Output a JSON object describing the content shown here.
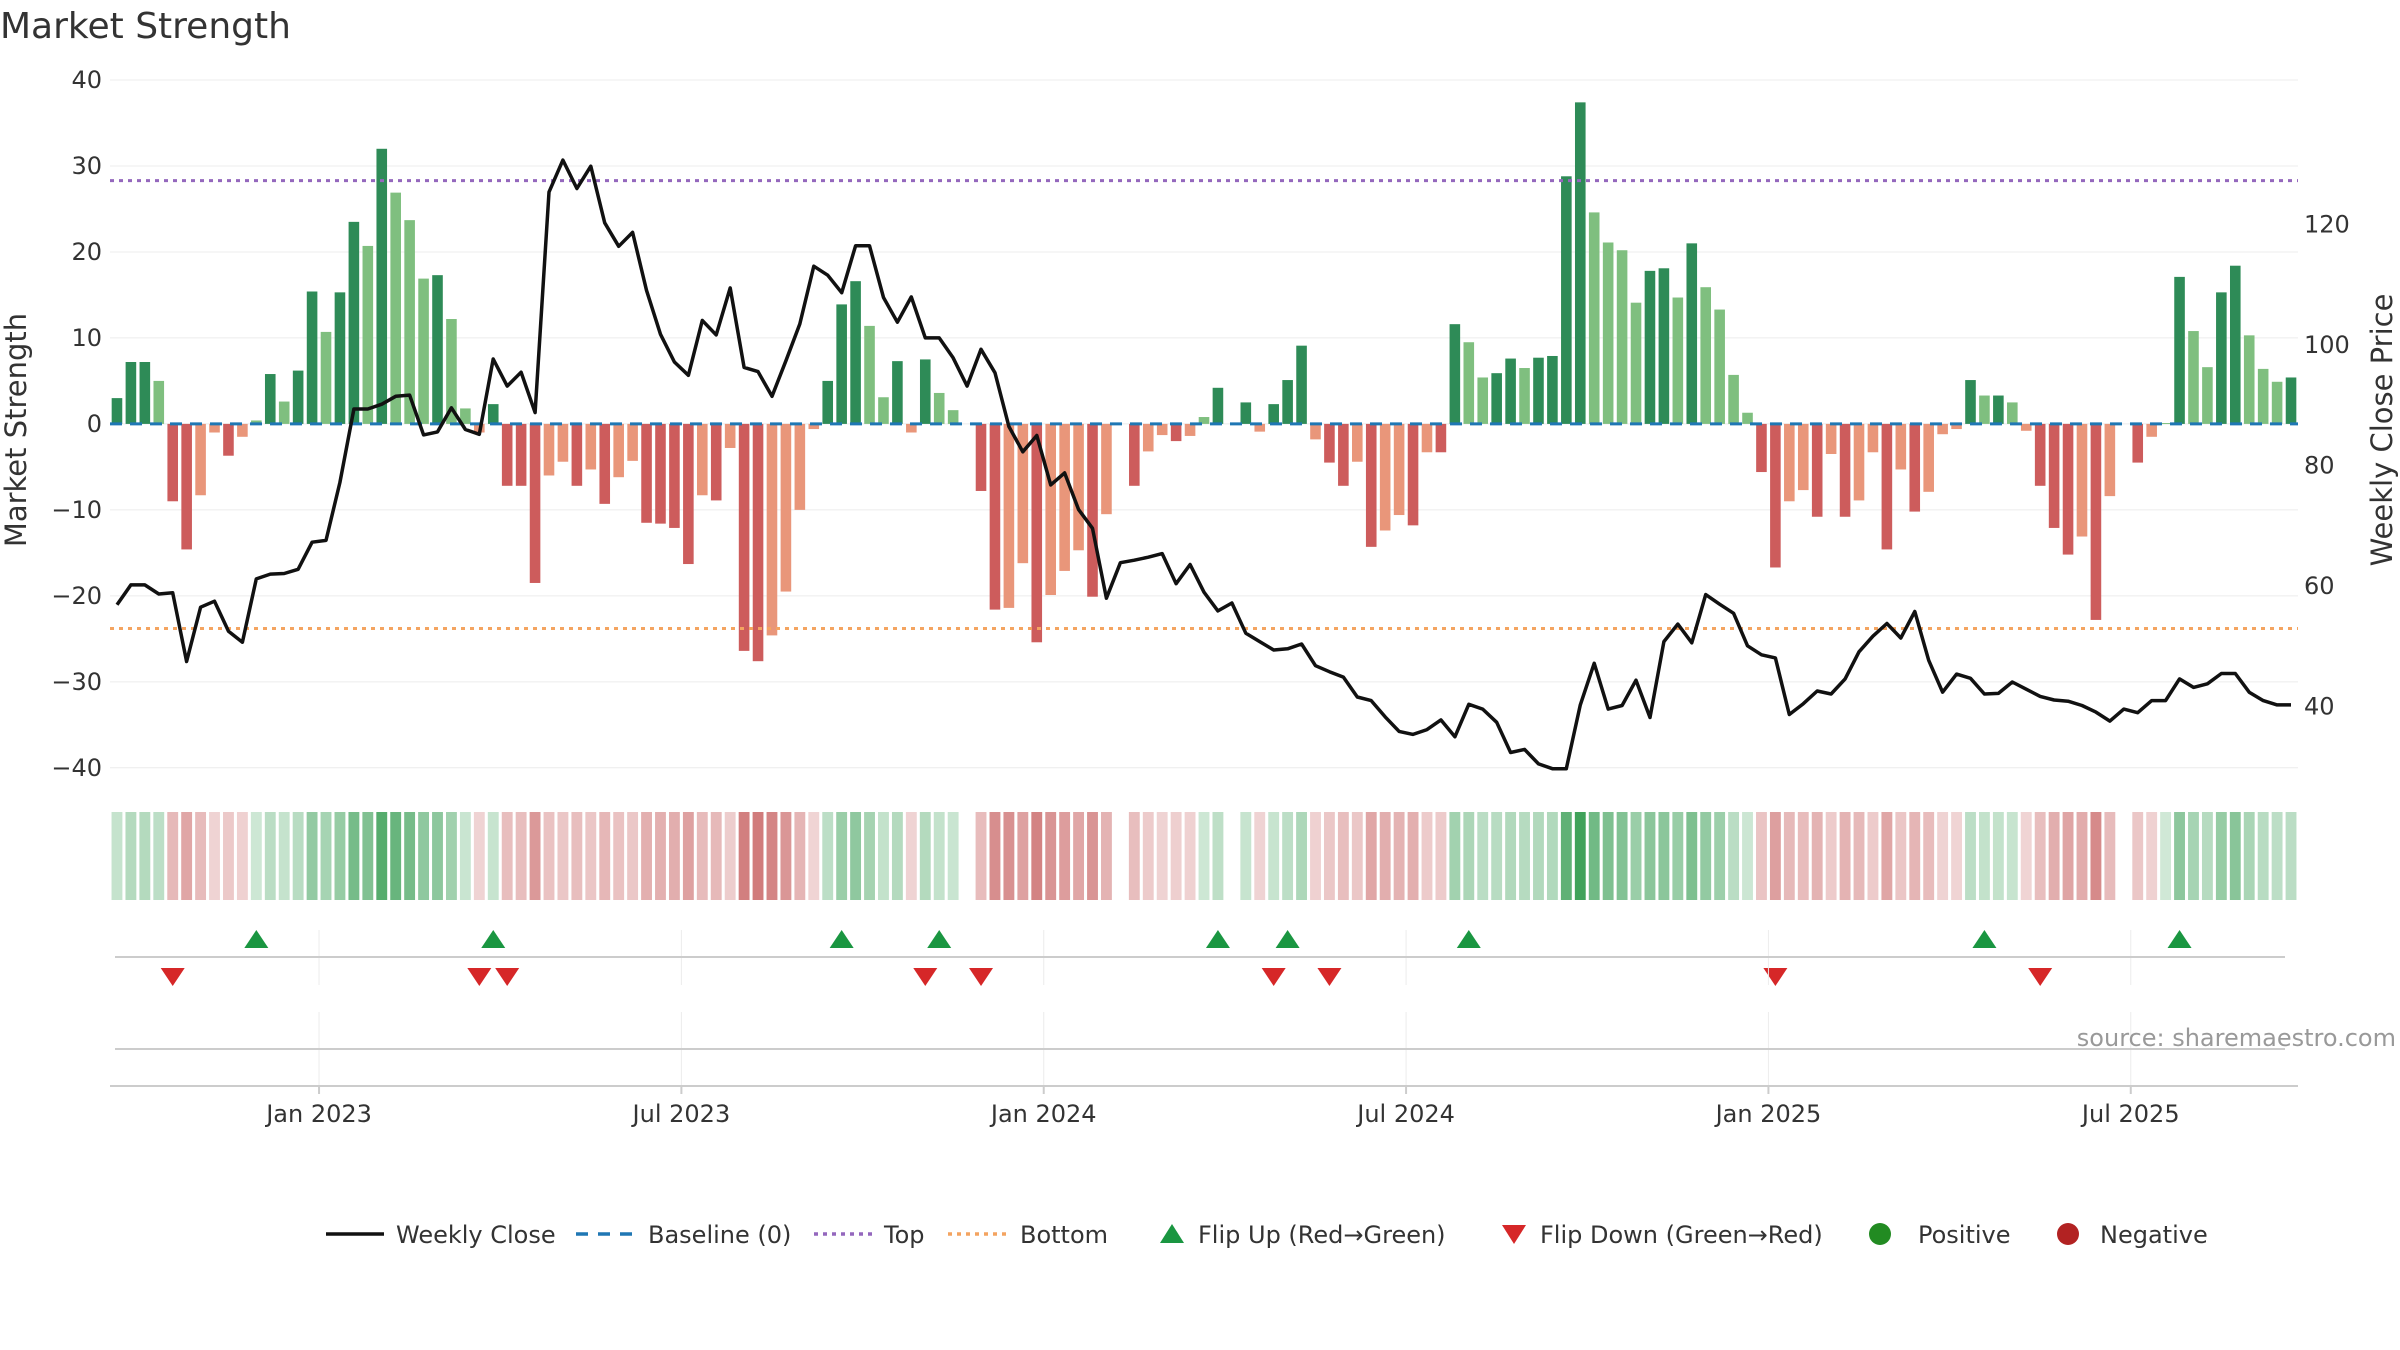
{
  "chart_data": {
    "type": "bar",
    "title": "Market Strength",
    "ylabel": "Market Strength",
    "y2label": "Weekly Close Price",
    "ylim": [
      -42,
      40
    ],
    "y2lim": [
      27,
      144
    ],
    "yticks": [
      40,
      30,
      20,
      10,
      0,
      -10,
      -20,
      -30,
      -40
    ],
    "y2ticks": [
      120,
      100,
      80,
      60,
      40
    ],
    "xticks": [
      "Jan 2023",
      "Jul 2023",
      "Jan 2024",
      "Jul 2024",
      "Jan 2025",
      "Jul 2025"
    ],
    "xtick_week_index": [
      15,
      41,
      67,
      93,
      119,
      145
    ],
    "top_level": 28.3,
    "bottom_level": -23.8,
    "strength": [
      3,
      7.2,
      7.2,
      5,
      -9,
      -14.6,
      -8.3,
      -1,
      -3.7,
      -1.5,
      0.4,
      5.8,
      2.6,
      6.2,
      15.4,
      10.7,
      15.3,
      23.5,
      20.7,
      32,
      26.9,
      23.7,
      16.9,
      17.3,
      12.2,
      1.8,
      -1,
      2.3,
      -7.2,
      -7.2,
      -18.5,
      -6,
      -4.4,
      -7.2,
      -5.3,
      -9.3,
      -6.2,
      -4.3,
      -11.5,
      -11.6,
      -12.1,
      -16.3,
      -8.3,
      -8.9,
      -2.8,
      -26.4,
      -27.6,
      -24.6,
      -19.5,
      -10,
      -0.6,
      5,
      13.9,
      16.6,
      11.4,
      3.1,
      7.3,
      -1,
      7.5,
      3.6,
      1.6,
      0,
      -7.8,
      -21.6,
      -21.4,
      -16.2,
      -25.4,
      -19.9,
      -17.1,
      -14.7,
      -20.1,
      -10.5,
      0,
      -7.2,
      -3.2,
      -1.3,
      -2,
      -1.4,
      0.8,
      4.2,
      0,
      2.5,
      -0.9,
      2.3,
      5.1,
      9.1,
      -1.8,
      -4.5,
      -7.2,
      -4.4,
      -14.3,
      -12.4,
      -10.6,
      -11.8,
      -3.3,
      -3.3,
      11.6,
      9.5,
      5.4,
      5.9,
      7.6,
      6.5,
      7.7,
      7.9,
      28.8,
      37.4,
      24.6,
      21.1,
      20.2,
      14.1,
      17.8,
      18.1,
      14.7,
      21,
      15.9,
      13.3,
      5.7,
      1.3,
      -5.6,
      -16.7,
      -9,
      -7.7,
      -10.8,
      -3.5,
      -10.8,
      -8.9,
      -3.3,
      -14.6,
      -5.3,
      -10.2,
      -7.9,
      -1.2,
      -0.6,
      5.1,
      3.3,
      3.3,
      2.5,
      -0.8,
      -7.2,
      -12.1,
      -15.2,
      -13.1,
      -22.8,
      -8.4,
      0,
      -4.5,
      -1.5,
      0.1,
      17.1,
      10.8,
      6.6,
      15.3,
      18.4,
      10.3,
      6.4,
      4.9,
      5.4
    ],
    "weekly_close": [
      56.9,
      60.2,
      60.2,
      58.7,
      58.9,
      47.5,
      56.5,
      57.5,
      52.5,
      50.7,
      61.2,
      62,
      62.1,
      62.8,
      67.3,
      67.6,
      77.2,
      89.4,
      89.4,
      90.2,
      91.5,
      91.7,
      85.1,
      85.6,
      89.6,
      86,
      85.2,
      97.7,
      93.2,
      95.5,
      88.8,
      125.4,
      130.7,
      126,
      129.7,
      120.3,
      116.4,
      118.7,
      109.1,
      101.8,
      97.2,
      95,
      104.1,
      101.7,
      109.5,
      96.3,
      95.6,
      91.5,
      97.4,
      103.5,
      113.1,
      111.6,
      108.7,
      116.5,
      116.5,
      107.9,
      103.8,
      108,
      101.2,
      101.2,
      97.9,
      93.2,
      99.3,
      95.4,
      86.5,
      82.3,
      85,
      76.8,
      78.8,
      72.7,
      69.6,
      58,
      63.9,
      64.3,
      64.8,
      65.4,
      60.4,
      63.6,
      59,
      55.9,
      57.2,
      52.2,
      50.8,
      49.4,
      49.6,
      50.4,
      46.8,
      45.8,
      44.9,
      41.6,
      41,
      38.3,
      35.9,
      35.4,
      36.2,
      37.8,
      35,
      40.4,
      39.6,
      37.4,
      32.4,
      32.9,
      30.5,
      29.7,
      29.7,
      40.3,
      47.2,
      39.6,
      40.2,
      44.4,
      38.2,
      50.8,
      53.7,
      50.6,
      58.6,
      57,
      55.5,
      50.1,
      48.6,
      48.1,
      38.7,
      40.5,
      42.6,
      42.1,
      44.6,
      49.1,
      51.7,
      53.8,
      51.4,
      55.8,
      47.7,
      42.4,
      45.4,
      44.7,
      42.1,
      42.2,
      44.1,
      42.9,
      41.7,
      41.1,
      40.9,
      40.2,
      39.1,
      37.6,
      39.6,
      39,
      41,
      41,
      44.6,
      43.2,
      43.8,
      45.5,
      45.5,
      42.4,
      41,
      40.3,
      40.3
    ],
    "flip_up_week_index": [
      10,
      27,
      52,
      59,
      79,
      84,
      97,
      134,
      148
    ],
    "flip_down_week_index": [
      4,
      26,
      28,
      58,
      62,
      83,
      87,
      119,
      138
    ],
    "legend": [
      "Weekly Close",
      "Baseline (0)",
      "Top",
      "Bottom",
      "Flip Up (Red→Green)",
      "Flip Down (Green→Red)",
      "Positive",
      "Negative"
    ],
    "legend_placement": "bottom-center",
    "source": "source: sharemaestro.com",
    "colors": {
      "strong_green": "#2e8b57",
      "light_green": "#7fbf7f",
      "strong_red": "#cd5c5c",
      "light_red": "#e9967a",
      "close_line": "#111111",
      "baseline": "#1f77b4",
      "top_line": "#9467bd",
      "bottom_line": "#f4a460",
      "flip_up": "#1a9641",
      "flip_down": "#d62728",
      "positive_dot": "#228b22",
      "negative_dot": "#b22222"
    }
  }
}
